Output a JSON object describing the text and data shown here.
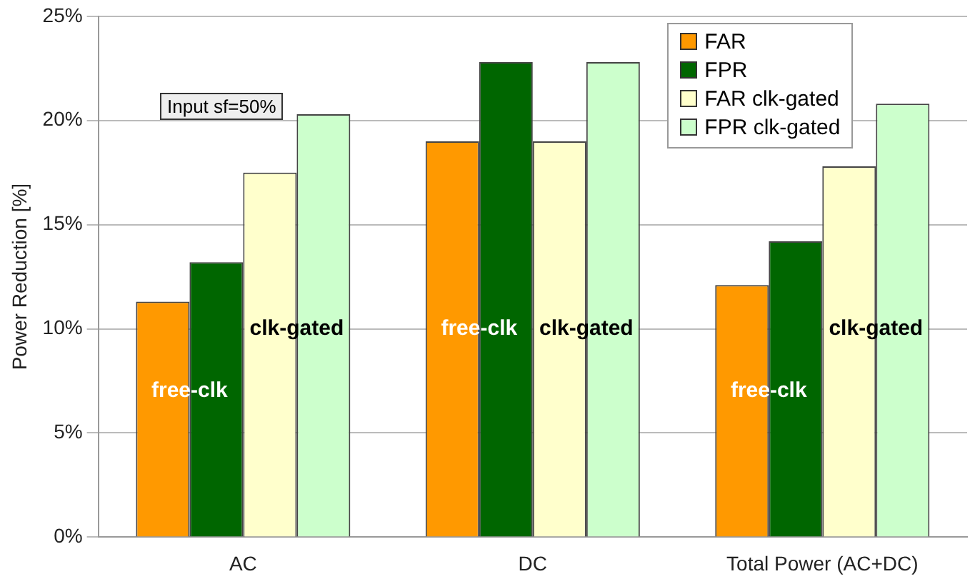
{
  "chart_data": {
    "type": "bar",
    "ylabel": "Power Reduction [%]",
    "categories": [
      "AC",
      "DC",
      "Total Power (AC+DC)"
    ],
    "series": [
      {
        "name": "FAR",
        "color": "#ff9900",
        "values": [
          11.3,
          19.0,
          12.1
        ]
      },
      {
        "name": "FPR",
        "color": "#006600",
        "values": [
          13.2,
          22.8,
          14.2
        ]
      },
      {
        "name": "FAR clk-gated",
        "color": "#ffffcc",
        "values": [
          17.5,
          19.0,
          17.8
        ]
      },
      {
        "name": "FPR clk-gated",
        "color": "#ccffcc",
        "values": [
          20.3,
          22.8,
          20.8
        ]
      }
    ],
    "ylim": [
      0,
      25
    ],
    "yticks": [
      {
        "value": 0,
        "label": "0%"
      },
      {
        "value": 5,
        "label": "5%"
      },
      {
        "value": 10,
        "label": "10%"
      },
      {
        "value": 15,
        "label": "15%"
      },
      {
        "value": 20,
        "label": "20%"
      },
      {
        "value": 25,
        "label": "25%"
      }
    ],
    "grid": "y",
    "legend": "top right",
    "annotations": [
      "Input sf=50%",
      {
        "text": "free-clk",
        "x": "AC",
        "y": 7
      },
      {
        "text": "clk-gated",
        "x": "AC",
        "y": 10
      },
      {
        "text": "free-clk",
        "x": "DC",
        "y": 10
      },
      {
        "text": "clk-gated",
        "x": "DC",
        "y": 10
      },
      {
        "text": "free-clk",
        "x": "Total Power (AC+DC)",
        "y": 7
      },
      {
        "text": "clk-gated",
        "x": "Total Power (AC+DC)",
        "y": 10
      }
    ]
  }
}
